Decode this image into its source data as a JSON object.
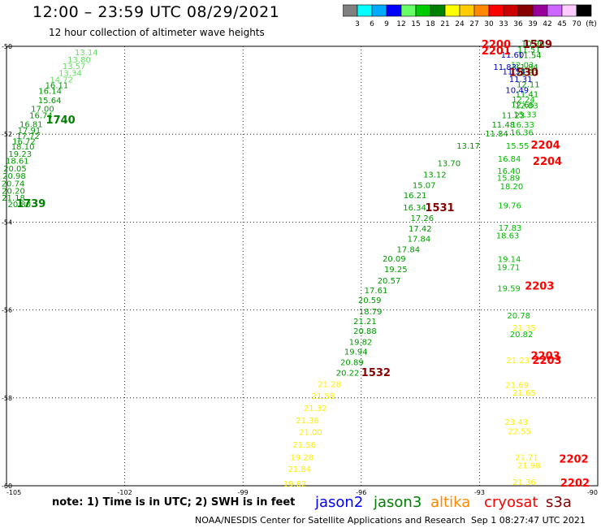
{
  "header": {
    "title": "12:00 – 23:59 UTC 08/29/2021",
    "subtitle": "12 hour collection of altimeter wave heights"
  },
  "colorbar": {
    "labels": [
      "3",
      "6",
      "9",
      "12",
      "15",
      "18",
      "21",
      "24",
      "27",
      "30",
      "33",
      "36",
      "39",
      "42",
      "45",
      "70"
    ],
    "unit": "(ft)",
    "colors": [
      "#808080",
      "#00ffff",
      "#00aaff",
      "#0000ff",
      "#66ff66",
      "#00cc00",
      "#008000",
      "#ffff00",
      "#ffcc00",
      "#ff8800",
      "#ff0000",
      "#cc0000",
      "#880000",
      "#990099",
      "#cc66ff",
      "#ffccff",
      "#000000"
    ]
  },
  "footer": {
    "note": "note: 1) Time is in UTC; 2) SWH is in feet",
    "satellites": [
      {
        "name": "jason2",
        "color": "#0000ff"
      },
      {
        "name": "jason3",
        "color": "#008000"
      },
      {
        "name": "altika",
        "color": "#ff8800"
      },
      {
        "name": "cryosat",
        "color": "#ff0000"
      },
      {
        "name": "s3a",
        "color": "#880000"
      }
    ],
    "credit": "NOAA/NESDIS Center for Satellite Applications and Research",
    "timestamp": "Sep  1 08:27:47 UTC 2021"
  },
  "chart_data": {
    "type": "scatter",
    "title": "12:00 – 23:59 UTC 08/29/2021",
    "subtitle": "12 hour collection of altimeter wave heights",
    "xlabel": "",
    "ylabel": "",
    "xlim": [
      -105,
      -90
    ],
    "ylim": [
      -60,
      -50
    ],
    "x_ticks": [
      -105,
      -102,
      -99,
      -96,
      -93,
      -90
    ],
    "y_ticks": [
      -50,
      -52,
      -54,
      -56,
      -58,
      -60
    ],
    "grid": true,
    "series": [
      {
        "name": "track-a",
        "color": "#66dd66",
        "points": [
          {
            "x": -103.27,
            "y": -50.15,
            "label": "13.14"
          },
          {
            "x": -103.45,
            "y": -50.31,
            "label": "13.80"
          },
          {
            "x": -103.58,
            "y": -50.46,
            "label": "13.57"
          },
          {
            "x": -103.68,
            "y": -50.62,
            "label": "13.34"
          },
          {
            "x": -103.9,
            "y": -50.77,
            "label": "14.72"
          }
        ]
      },
      {
        "name": "track-b",
        "color": "#009900",
        "points": [
          {
            "x": -104.02,
            "y": -50.9,
            "label": "16.11"
          },
          {
            "x": -104.19,
            "y": -51.03,
            "label": "16.14"
          },
          {
            "x": -104.2,
            "y": -51.24,
            "label": "15.64"
          },
          {
            "x": -104.38,
            "y": -51.43,
            "label": "17.00"
          },
          {
            "x": -104.42,
            "y": -51.58,
            "label": "16.74"
          },
          {
            "x": -104.67,
            "y": -51.78,
            "label": "16.81"
          },
          {
            "x": -104.72,
            "y": -51.92,
            "label": "17.91"
          },
          {
            "x": -104.75,
            "y": -52.05,
            "label": "17.72"
          },
          {
            "x": -104.85,
            "y": -52.17,
            "label": "16.72"
          },
          {
            "x": -104.88,
            "y": -52.29,
            "label": "18.10"
          },
          {
            "x": -104.95,
            "y": -52.46,
            "label": "19.23"
          },
          {
            "x": -105.02,
            "y": -52.62,
            "label": "18.61"
          },
          {
            "x": -105.08,
            "y": -52.79,
            "label": "20.05"
          },
          {
            "x": -105.1,
            "y": -52.96,
            "label": "20.98"
          },
          {
            "x": -105.13,
            "y": -53.13,
            "label": "20.74"
          },
          {
            "x": -105.12,
            "y": -53.3,
            "label": "20.20"
          },
          {
            "x": -105.12,
            "y": -53.46,
            "label": "21.18"
          },
          {
            "x": -104.97,
            "y": -53.6,
            "label": "20.80"
          }
        ]
      },
      {
        "name": "track-c",
        "color": "#009900",
        "points": [
          {
            "x": -94.94,
            "y": -53.68,
            "label": "16.34"
          },
          {
            "x": -94.93,
            "y": -53.4,
            "label": "16.21"
          },
          {
            "x": -94.7,
            "y": -53.17,
            "label": "15.07"
          },
          {
            "x": -94.43,
            "y": -52.93,
            "label": "13.12"
          },
          {
            "x": -94.07,
            "y": -52.67,
            "label": "13.70"
          },
          {
            "x": -93.58,
            "y": -52.27,
            "label": "13.17"
          },
          {
            "x": -92.86,
            "y": -52.0,
            "label": "11.84"
          },
          {
            "x": -92.69,
            "y": -51.79,
            "label": "11.48"
          },
          {
            "x": -92.44,
            "y": -51.58,
            "label": "11.23"
          },
          {
            "x": -92.2,
            "y": -51.34,
            "label": "12.65"
          },
          {
            "x": -92.09,
            "y": -51.1,
            "label": "11.41"
          },
          {
            "x": -92.06,
            "y": -50.88,
            "label": "12.11"
          },
          {
            "x": -92.09,
            "y": -50.61,
            "label": "11.83"
          },
          {
            "x": -92.1,
            "y": -50.48,
            "label": "11.84"
          },
          {
            "x": -92.02,
            "y": -50.21,
            "label": "11.54"
          },
          {
            "x": -92.04,
            "y": -50.08,
            "label": "11.51"
          },
          {
            "x": -91.94,
            "y": -49.94,
            "label": "10.96"
          }
        ]
      },
      {
        "name": "track-d",
        "color": "#009900",
        "points": [
          {
            "x": -94.75,
            "y": -53.92,
            "label": "17.26"
          },
          {
            "x": -94.8,
            "y": -54.16,
            "label": "17.42"
          },
          {
            "x": -94.83,
            "y": -54.39,
            "label": "17.84"
          },
          {
            "x": -95.1,
            "y": -54.63,
            "label": "17.84"
          },
          {
            "x": -95.46,
            "y": -54.84,
            "label": "20.09"
          },
          {
            "x": -95.42,
            "y": -55.08,
            "label": "19.25"
          },
          {
            "x": -95.59,
            "y": -55.34,
            "label": "20.57"
          },
          {
            "x": -95.92,
            "y": -55.56,
            "label": "17.61"
          },
          {
            "x": -96.08,
            "y": -55.79,
            "label": "20.59"
          },
          {
            "x": -96.06,
            "y": -56.04,
            "label": "18.79"
          },
          {
            "x": -96.2,
            "y": -56.27,
            "label": "21.21"
          },
          {
            "x": -96.2,
            "y": -56.49,
            "label": "20.88"
          },
          {
            "x": -96.31,
            "y": -56.74,
            "label": "19.82"
          },
          {
            "x": -96.43,
            "y": -56.96,
            "label": "19.94"
          },
          {
            "x": -96.53,
            "y": -57.2,
            "label": "20.89"
          },
          {
            "x": -96.64,
            "y": -57.44,
            "label": "20.22"
          }
        ]
      },
      {
        "name": "track-e",
        "color": "#ffee00",
        "points": [
          {
            "x": -97.1,
            "y": -57.7,
            "label": "21.28"
          },
          {
            "x": -97.26,
            "y": -57.97,
            "label": "21.58"
          },
          {
            "x": -97.46,
            "y": -58.24,
            "label": "21.32"
          },
          {
            "x": -97.66,
            "y": -58.52,
            "label": "21.36"
          },
          {
            "x": -97.58,
            "y": -58.79,
            "label": "21.00"
          },
          {
            "x": -97.74,
            "y": -59.08,
            "label": "21.56"
          },
          {
            "x": -97.8,
            "y": -59.36,
            "label": "19.28"
          },
          {
            "x": -97.86,
            "y": -59.63,
            "label": "21.84"
          },
          {
            "x": -97.98,
            "y": -59.96,
            "label": "19.82"
          }
        ]
      },
      {
        "name": "track-f",
        "color": "#00bb00",
        "points": [
          {
            "x": -92.21,
            "y": -50.43,
            "label": "12.03"
          },
          {
            "x": -92.18,
            "y": -51.22,
            "label": "12.24"
          },
          {
            "x": -92.1,
            "y": -51.36,
            "label": "12.83"
          },
          {
            "x": -92.14,
            "y": -51.56,
            "label": "15.33"
          },
          {
            "x": -92.2,
            "y": -51.79,
            "label": "16.33"
          },
          {
            "x": -92.22,
            "y": -51.97,
            "label": "16.36"
          },
          {
            "x": -92.33,
            "y": -52.27,
            "label": "15.55"
          },
          {
            "x": -92.54,
            "y": -52.57,
            "label": "16.84"
          },
          {
            "x": -92.55,
            "y": -52.85,
            "label": "16.40"
          },
          {
            "x": -92.56,
            "y": -53.0,
            "label": "15.89"
          },
          {
            "x": -92.48,
            "y": -53.2,
            "label": "18.20"
          },
          {
            "x": -92.53,
            "y": -53.63,
            "label": "19.76"
          },
          {
            "x": -92.52,
            "y": -54.14,
            "label": "17.83"
          },
          {
            "x": -92.58,
            "y": -54.32,
            "label": "18.63"
          },
          {
            "x": -92.54,
            "y": -54.85,
            "label": "19.14"
          },
          {
            "x": -92.56,
            "y": -55.04,
            "label": "19.71"
          },
          {
            "x": -92.55,
            "y": -55.52,
            "label": "19.59"
          },
          {
            "x": -92.3,
            "y": -56.14,
            "label": "20.78"
          },
          {
            "x": -92.23,
            "y": -56.56,
            "label": "20.82"
          }
        ]
      },
      {
        "name": "track-g",
        "color": "#ffee00",
        "points": [
          {
            "x": -92.16,
            "y": -56.41,
            "label": "21.35"
          },
          {
            "x": -92.32,
            "y": -57.15,
            "label": "21.23"
          },
          {
            "x": -92.34,
            "y": -57.72,
            "label": "21.69"
          },
          {
            "x": -92.16,
            "y": -57.89,
            "label": "21.65"
          },
          {
            "x": -92.36,
            "y": -58.56,
            "label": "23.43"
          },
          {
            "x": -92.28,
            "y": -58.77,
            "label": "22.55"
          },
          {
            "x": -92.1,
            "y": -59.36,
            "label": "21.71"
          },
          {
            "x": -92.04,
            "y": -59.55,
            "label": "21.98"
          },
          {
            "x": -92.16,
            "y": -59.93,
            "label": "21.36"
          }
        ]
      },
      {
        "name": "track-h",
        "color": "#0000cc",
        "points": [
          {
            "x": -92.65,
            "y": -50.48,
            "label": "11.83"
          },
          {
            "x": -92.42,
            "y": -50.58,
            "label": "11.54"
          },
          {
            "x": -92.25,
            "y": -50.76,
            "label": "11.31"
          },
          {
            "x": -92.34,
            "y": -51.01,
            "label": "10.49"
          },
          {
            "x": -92.46,
            "y": -50.2,
            "label": "11.60"
          }
        ]
      },
      {
        "name": "pass-labels",
        "color": "#008000",
        "points": [
          {
            "x": -104.0,
            "y": -51.7,
            "label": "1740"
          },
          {
            "x": -104.75,
            "y": -53.6,
            "label": "1739"
          }
        ]
      },
      {
        "name": "pass-labels-s3a",
        "color": "#880000",
        "points": [
          {
            "x": -91.9,
            "y": -49.98,
            "label": "1529"
          },
          {
            "x": -92.25,
            "y": -50.62,
            "label": "1530"
          },
          {
            "x": -94.38,
            "y": -53.7,
            "label": "1531"
          },
          {
            "x": -96.0,
            "y": -57.45,
            "label": "1532"
          }
        ]
      },
      {
        "name": "pass-labels-cryosat",
        "color": "#ff0000",
        "points": [
          {
            "x": -92.95,
            "y": -49.98,
            "label": "2200"
          },
          {
            "x": -92.95,
            "y": -50.13,
            "label": "2201"
          },
          {
            "x": -91.7,
            "y": -52.27,
            "label": "2204"
          },
          {
            "x": -91.65,
            "y": -52.64,
            "label": "2204"
          },
          {
            "x": -91.85,
            "y": -55.48,
            "label": "2203"
          },
          {
            "x": -91.7,
            "y": -57.07,
            "label": "2203"
          },
          {
            "x": -91.66,
            "y": -57.17,
            "label": "2203"
          },
          {
            "x": -90.98,
            "y": -59.42,
            "label": "2202"
          },
          {
            "x": -90.95,
            "y": -59.96,
            "label": "2202"
          }
        ]
      }
    ]
  }
}
